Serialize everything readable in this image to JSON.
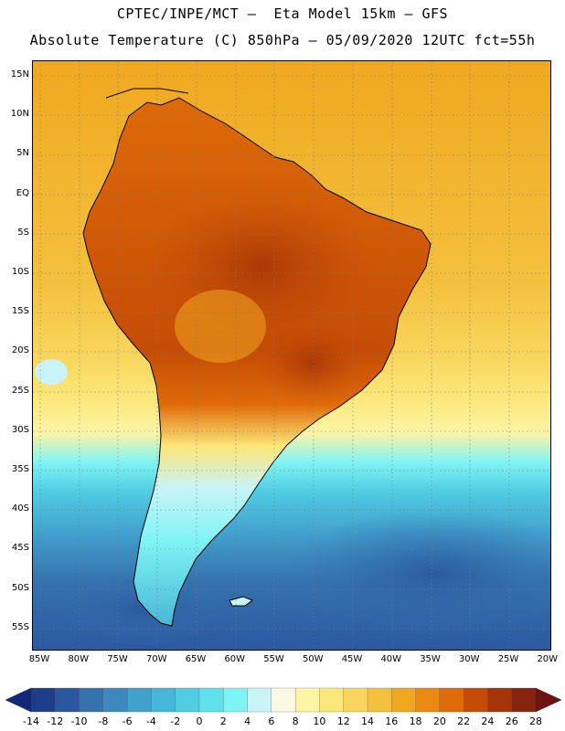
{
  "title_line1": "CPTEC/INPE/MCT –  Eta Model 15km – GFS",
  "title_line2": "Absolute Temperature (C) 850hPa – 05/09/2020 12UTC fct=55h",
  "lat_labels": [
    "15N",
    "10N",
    "5N",
    "EQ",
    "5S",
    "10S",
    "15S",
    "20S",
    "25S",
    "30S",
    "35S",
    "40S",
    "45S",
    "50S",
    "55S"
  ],
  "lon_labels": [
    "85W",
    "80W",
    "75W",
    "70W",
    "65W",
    "60W",
    "55W",
    "50W",
    "45W",
    "40W",
    "35W",
    "30W",
    "25W",
    "20W"
  ],
  "colorbar": {
    "labels": [
      "-14",
      "-12",
      "-10",
      "-8",
      "-6",
      "-4",
      "-2",
      "0",
      "2",
      "4",
      "6",
      "8",
      "10",
      "12",
      "14",
      "16",
      "18",
      "20",
      "22",
      "24",
      "26",
      "28"
    ],
    "colors": [
      "#1d3d8a",
      "#2a58a0",
      "#3672ae",
      "#3d88bd",
      "#42a0cc",
      "#47b6d8",
      "#50cce3",
      "#5fe2ee",
      "#7ff4f4",
      "#c8f4f8",
      "#fdf8e4",
      "#fdf4a6",
      "#fbe77a",
      "#f8d65e",
      "#f3c13e",
      "#f0a820",
      "#eb8a12",
      "#de6a08",
      "#c54c06",
      "#a53408",
      "#862410"
    ],
    "end_left_color": "#12287a",
    "end_right_color": "#6e1212"
  }
}
